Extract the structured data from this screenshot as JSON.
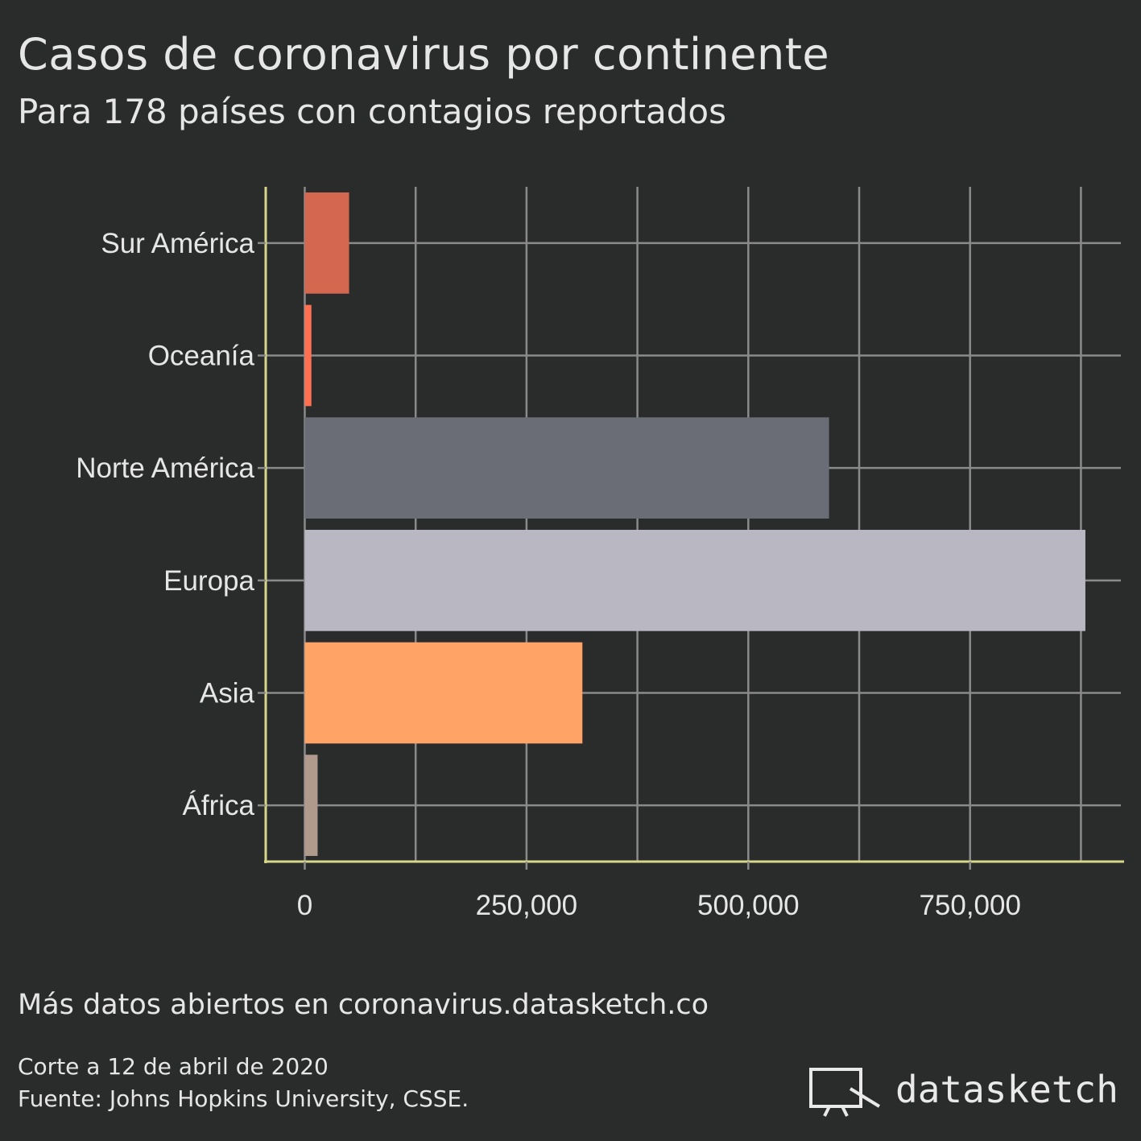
{
  "header": {
    "title": "Casos de coronavirus por continente",
    "subtitle": "Para 178 países con contagios reportados"
  },
  "footer": {
    "caption": "Más datos abiertos en coronavirus.datasketch.co",
    "date_note": "Corte a 12 de abril de 2020",
    "source_note": "Fuente: Johns Hopkins University, CSSE.",
    "brand": "datasketch",
    "brand_icon": "presentation-board-icon"
  },
  "chart_data": {
    "type": "bar",
    "orientation": "horizontal",
    "categories": [
      "Sur América",
      "Oceanía",
      "Norte América",
      "Europa",
      "Asia",
      "África"
    ],
    "values": [
      50000,
      7500,
      591000,
      880000,
      313000,
      14500
    ],
    "colors": [
      "#d4674f",
      "#ff6f50",
      "#6a6d75",
      "#b9b7c2",
      "#ffa366",
      "#b09a8c"
    ],
    "xlim": [
      -44000,
      920000
    ],
    "xticks": [
      0,
      250000,
      500000,
      750000
    ],
    "xtick_labels": [
      "0",
      "250,000",
      "500,000",
      "750,000"
    ],
    "xlabel": "",
    "ylabel": "",
    "grid": true,
    "axis_color": "#d7d68a",
    "grid_color": "#8a8a8a"
  }
}
